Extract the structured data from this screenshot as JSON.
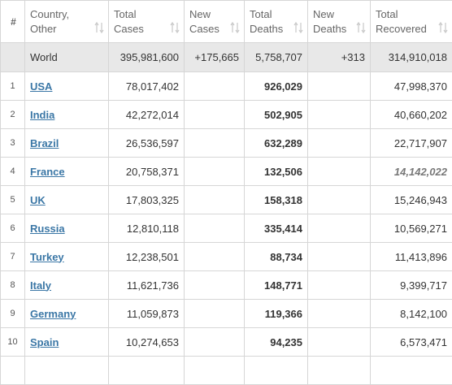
{
  "table": {
    "headers": [
      "#",
      "Country, Other",
      "Total Cases",
      "New Cases",
      "Total Deaths",
      "New Deaths",
      "Total Recovered"
    ],
    "world": [
      "World",
      "395,981,600",
      "+175,665",
      "5,758,707",
      "+313",
      "314,910,018"
    ],
    "rows": [
      [
        "1",
        "USA",
        "78,017,402",
        "926,029",
        "47,998,370"
      ],
      [
        "2",
        "India",
        "42,272,014",
        "502,905",
        "40,660,202"
      ],
      [
        "3",
        "Brazil",
        "26,536,597",
        "632,289",
        "22,717,907"
      ],
      [
        "4",
        "France",
        "20,758,371",
        "132,506",
        "14,142,022"
      ],
      [
        "5",
        "UK",
        "17,803,325",
        "158,318",
        "15,246,943"
      ],
      [
        "6",
        "Russia",
        "12,810,118",
        "335,414",
        "10,569,271"
      ],
      [
        "7",
        "Turkey",
        "12,238,501",
        "88,734",
        "11,413,896"
      ],
      [
        "8",
        "Italy",
        "11,621,736",
        "148,771",
        "9,399,717"
      ],
      [
        "9",
        "Germany",
        "11,059,873",
        "119,366",
        "8,142,100"
      ],
      [
        "10",
        "Spain",
        "10,274,653",
        "94,235",
        "6,573,471"
      ]
    ]
  }
}
